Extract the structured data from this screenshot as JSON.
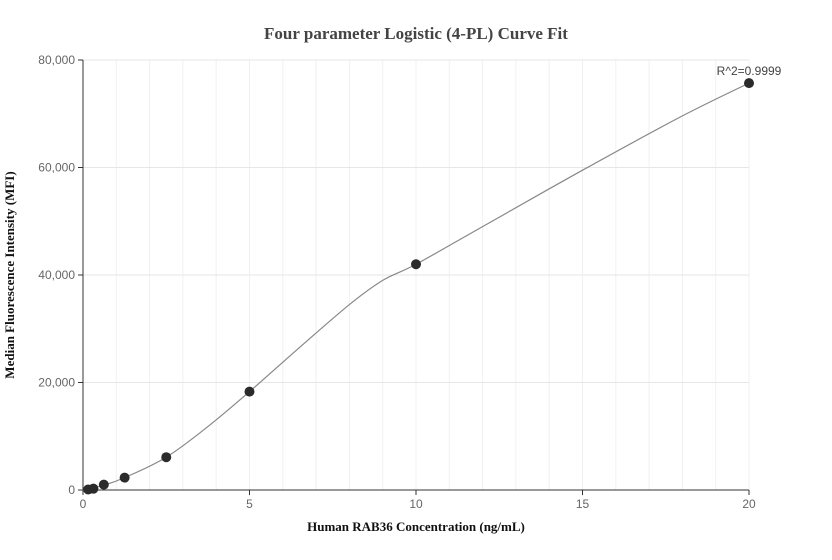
{
  "chart_data": {
    "type": "scatter",
    "title": "Four parameter Logistic (4-PL) Curve Fit",
    "xlabel": "Human RAB36 Concentration (ng/mL)",
    "ylabel": "Median Fluorescence Intensity (MFI)",
    "xlim": [
      0,
      20
    ],
    "ylim": [
      0,
      80000
    ],
    "x_ticks": [
      "0",
      "5",
      "10",
      "15",
      "20"
    ],
    "y_ticks": [
      "0",
      "20,000",
      "40,000",
      "60,000",
      "80,000"
    ],
    "grid": true,
    "annotation": "R^2=0.9999",
    "points": [
      {
        "x": 0.156,
        "y": 100
      },
      {
        "x": 0.313,
        "y": 250
      },
      {
        "x": 0.625,
        "y": 1000
      },
      {
        "x": 1.25,
        "y": 2300
      },
      {
        "x": 2.5,
        "y": 6100
      },
      {
        "x": 5,
        "y": 18300
      },
      {
        "x": 10,
        "y": 42000
      },
      {
        "x": 20,
        "y": 75700
      }
    ],
    "fit_curve": [
      {
        "x": 0,
        "y": 0
      },
      {
        "x": 0.625,
        "y": 900
      },
      {
        "x": 1.25,
        "y": 2300
      },
      {
        "x": 2.5,
        "y": 6100
      },
      {
        "x": 3.75,
        "y": 11800
      },
      {
        "x": 5,
        "y": 18300
      },
      {
        "x": 6.5,
        "y": 26500
      },
      {
        "x": 8,
        "y": 34500
      },
      {
        "x": 9,
        "y": 39000
      },
      {
        "x": 10,
        "y": 42000
      },
      {
        "x": 12,
        "y": 49000
      },
      {
        "x": 15,
        "y": 59500
      },
      {
        "x": 18,
        "y": 69600
      },
      {
        "x": 20,
        "y": 75700
      }
    ],
    "colors": {
      "point": "#2b2b2b",
      "line": "#888888",
      "grid": "#e6e6e6",
      "axis": "#333333"
    }
  }
}
